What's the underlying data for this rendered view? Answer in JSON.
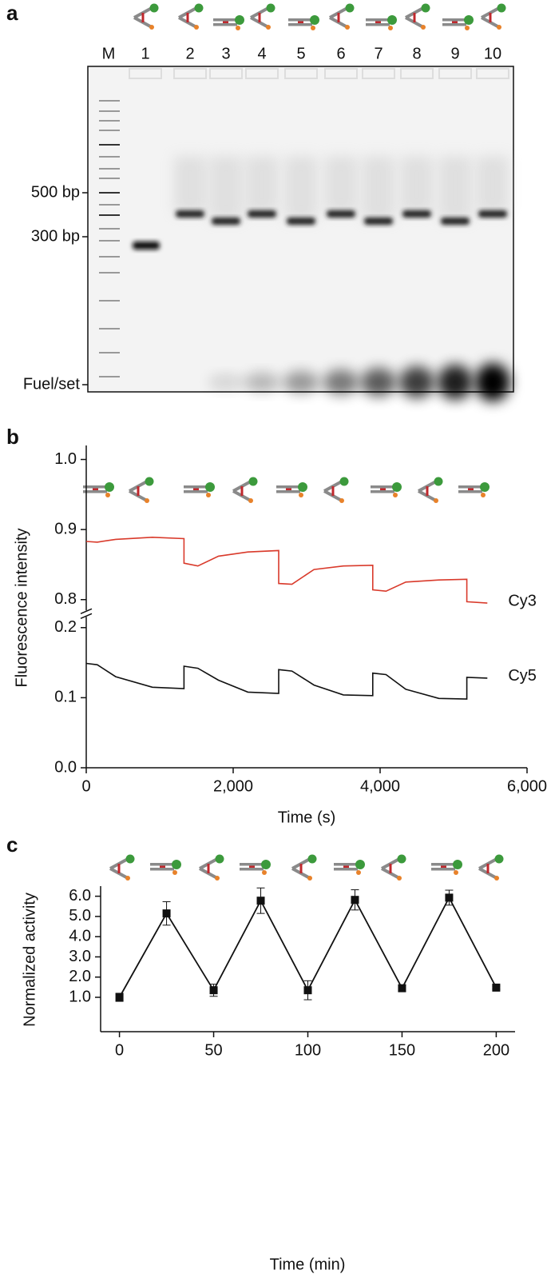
{
  "panel_labels": [
    "a",
    "b",
    "c"
  ],
  "gel": {
    "lane_labels": [
      "M",
      "1",
      "2",
      "3",
      "4",
      "5",
      "6",
      "7",
      "8",
      "9",
      "10"
    ],
    "size_labels": [
      "500 bp",
      "300 bp",
      "Fuel/set"
    ]
  },
  "chart_data": [
    {
      "type": "line",
      "y_label": "Fluorescence intensity",
      "x_label": "Time (s)",
      "x": [
        0,
        150,
        400,
        900,
        1330,
        1330,
        1520,
        1800,
        2200,
        2620,
        2620,
        2800,
        3100,
        3500,
        3900,
        3900,
        4080,
        4350,
        4800,
        5180,
        5180,
        5460
      ],
      "series": [
        {
          "name": "Cy3",
          "color": "#d93a2b",
          "values": [
            0.883,
            0.882,
            0.886,
            0.889,
            0.887,
            0.852,
            0.848,
            0.862,
            0.868,
            0.87,
            0.823,
            0.822,
            0.843,
            0.848,
            0.849,
            0.814,
            0.812,
            0.825,
            0.828,
            0.829,
            0.797,
            0.795
          ]
        },
        {
          "name": "Cy5",
          "color": "#111111",
          "values": [
            0.149,
            0.147,
            0.13,
            0.115,
            0.113,
            0.145,
            0.142,
            0.125,
            0.108,
            0.106,
            0.14,
            0.138,
            0.118,
            0.104,
            0.103,
            0.135,
            0.133,
            0.112,
            0.099,
            0.098,
            0.129,
            0.128
          ]
        }
      ],
      "xlim": [
        0,
        6000
      ],
      "xticks": [
        0,
        {
          "value": 2000,
          "label": "2,000"
        },
        {
          "value": 4000,
          "label": "4,000"
        },
        {
          "value": 6000,
          "label": "6,000"
        }
      ],
      "ylim": [
        0,
        1.02
      ],
      "ybreak": [
        0.22,
        0.78
      ],
      "yticks": [
        {
          "value": 0,
          "label": "0.0"
        },
        0.1,
        0.2,
        0.8,
        0.9,
        {
          "value": 1,
          "label": "1.0"
        }
      ]
    },
    {
      "type": "line",
      "y_label": "Normalized activity",
      "x_label": "Time (min)",
      "color": "#111111",
      "x": [
        0,
        25,
        50,
        75,
        100,
        125,
        150,
        175,
        200
      ],
      "values": [
        1.0,
        5.15,
        1.35,
        5.78,
        1.35,
        5.82,
        1.45,
        5.93,
        1.48
      ],
      "errors": [
        0.2,
        0.58,
        0.3,
        0.63,
        0.47,
        0.5,
        0.15,
        0.37,
        0.08
      ],
      "xlim": [
        -10,
        210
      ],
      "xticks": [
        0,
        50,
        100,
        150,
        200
      ],
      "ylim": [
        -0.7,
        6.5
      ],
      "yticks": [
        {
          "value": 1,
          "label": "1.0"
        },
        {
          "value": 2,
          "label": "2.0"
        },
        {
          "value": 3,
          "label": "3.0"
        },
        {
          "value": 4,
          "label": "4.0"
        },
        {
          "value": 5,
          "label": "5.0"
        },
        {
          "value": 6,
          "label": "6.0"
        }
      ]
    }
  ]
}
